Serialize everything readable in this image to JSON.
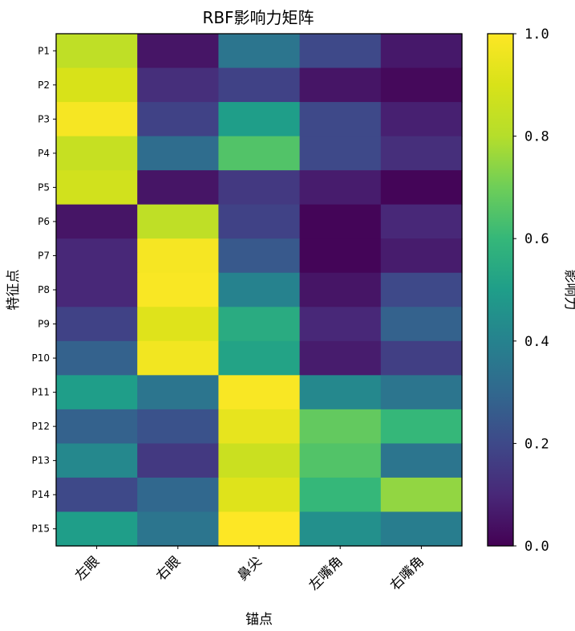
{
  "chart_data": {
    "type": "heatmap",
    "title": "RBF影响力矩阵",
    "xlabel": "锚点",
    "ylabel": "特征点",
    "colorbar_label": "影响力",
    "colormap": "viridis",
    "vmin": 0.0,
    "vmax": 1.0,
    "colorbar_ticks": [
      "0.0",
      "0.2",
      "0.4",
      "0.6",
      "0.8",
      "1.0"
    ],
    "x_categories": [
      "左眼",
      "右眼",
      "鼻尖",
      "左嘴角",
      "右嘴角"
    ],
    "y_categories": [
      "P1",
      "P2",
      "P3",
      "P4",
      "P5",
      "P6",
      "P7",
      "P8",
      "P9",
      "P10",
      "P11",
      "P12",
      "P13",
      "P14",
      "P15"
    ],
    "values": [
      [
        0.83,
        0.05,
        0.35,
        0.2,
        0.06
      ],
      [
        0.9,
        0.12,
        0.18,
        0.05,
        0.02
      ],
      [
        0.98,
        0.18,
        0.5,
        0.2,
        0.08
      ],
      [
        0.85,
        0.32,
        0.65,
        0.2,
        0.12
      ],
      [
        0.88,
        0.05,
        0.15,
        0.07,
        0.01
      ],
      [
        0.05,
        0.83,
        0.18,
        0.01,
        0.1
      ],
      [
        0.1,
        0.98,
        0.25,
        0.01,
        0.07
      ],
      [
        0.1,
        0.99,
        0.4,
        0.05,
        0.2
      ],
      [
        0.18,
        0.92,
        0.55,
        0.1,
        0.28
      ],
      [
        0.28,
        0.97,
        0.52,
        0.07,
        0.17
      ],
      [
        0.5,
        0.35,
        0.99,
        0.42,
        0.35
      ],
      [
        0.28,
        0.23,
        0.94,
        0.68,
        0.6
      ],
      [
        0.42,
        0.15,
        0.86,
        0.65,
        0.35
      ],
      [
        0.2,
        0.3,
        0.92,
        0.6,
        0.75
      ],
      [
        0.5,
        0.35,
        1.0,
        0.45,
        0.38
      ]
    ]
  }
}
